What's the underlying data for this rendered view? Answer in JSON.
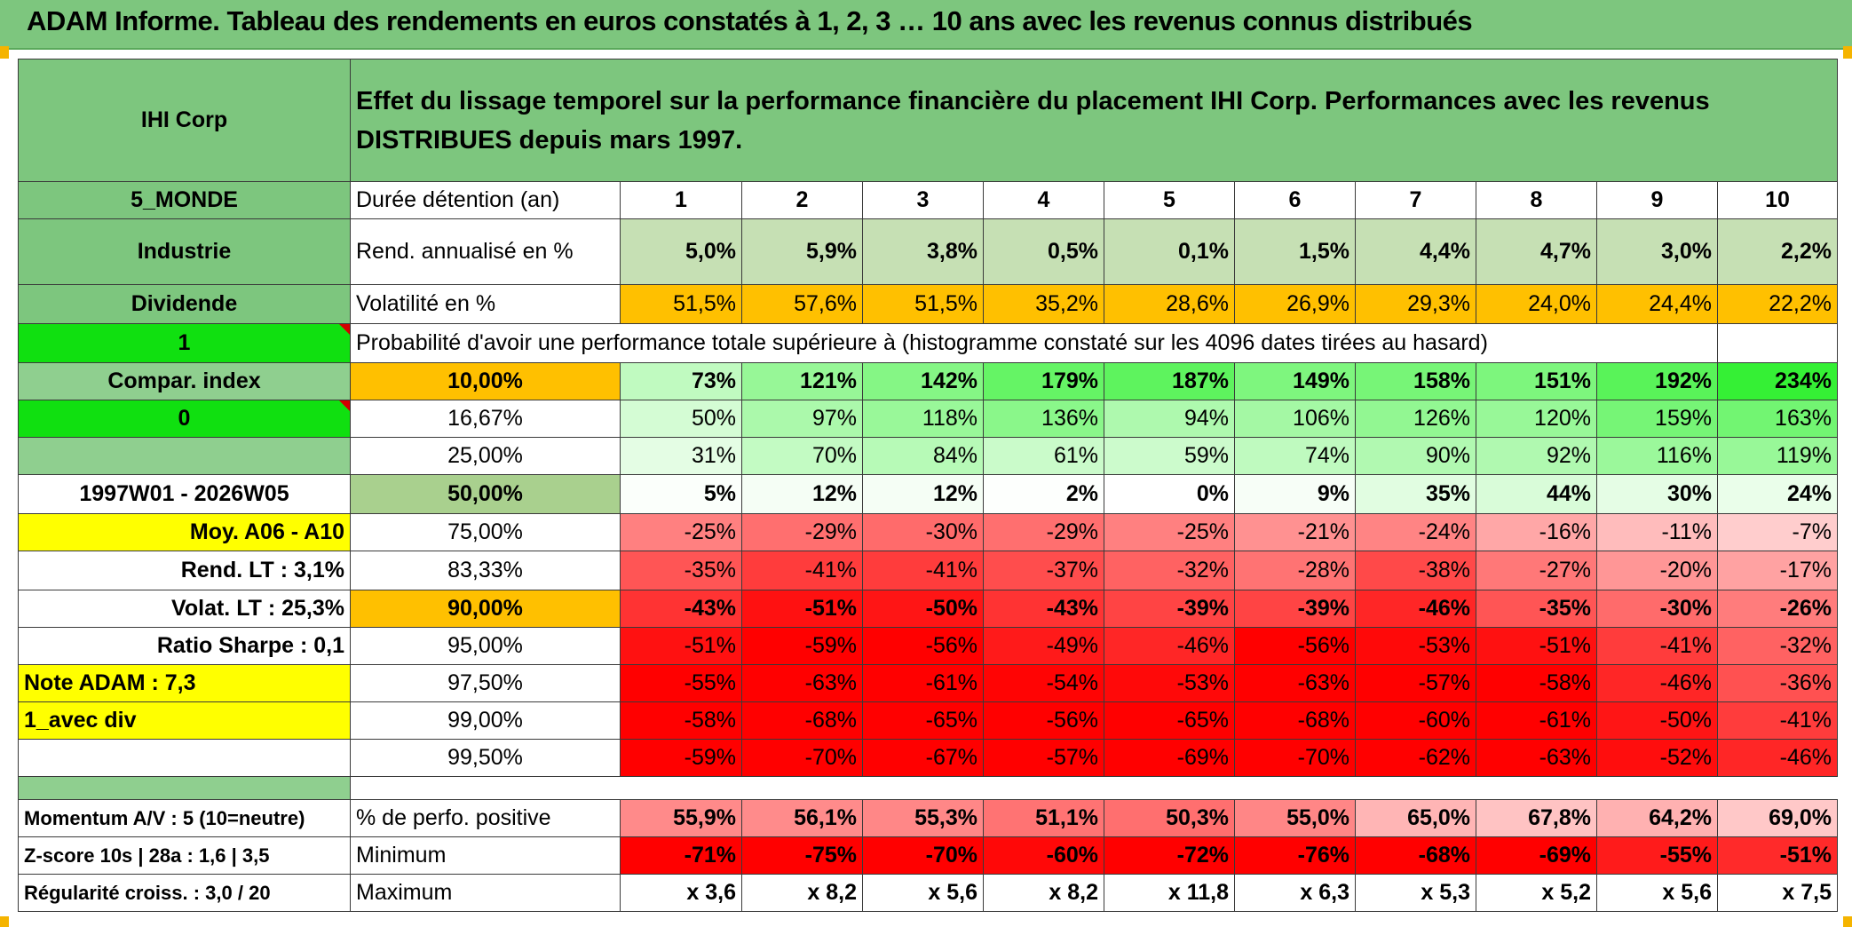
{
  "title": "ADAM Informe. Tableau des rendements en euros constatés à 1, 2, 3 … 10 ans avec les revenus connus distribués",
  "header": {
    "company": "IHI Corp",
    "description": "Effet du lissage temporel sur la performance financière du placement IHI Corp. Performances avec les revenus DISTRIBUES depuis mars 1997."
  },
  "left": {
    "zone": "5_MONDE",
    "sector": "Industrie",
    "dividend": "Dividende",
    "flag1": "1",
    "compar": "Compar. index",
    "flag0": "0",
    "period": "1997W01 - 2026W05",
    "moy": "Moy. A06 - A10",
    "rend_lt": "Rend. LT :   3,1%",
    "volat_lt": "Volat. LT :   25,3%",
    "sharpe": "Ratio Sharpe :    0,1",
    "note": "Note ADAM : 7,3",
    "avec_div": "1_avec div",
    "momentum": "Momentum A/V : 5 (10=neutre)",
    "zscore": "Z-score 10s | 28a : 1,6 | 3,5",
    "regularite": "Régularité croiss. : 3,0 / 20"
  },
  "labels": {
    "duree": "Durée détention (an)",
    "rend": "Rend. annualisé en %",
    "volat": "Volatilité en %",
    "proba": "Probabilité d'avoir une performance totale supérieure à (histogramme constaté sur les 4096 dates tirées au hasard)",
    "perf_pos": "% de perfo. positive",
    "minimum": "Minimum",
    "maximum": "Maximum"
  },
  "years": [
    "1",
    "2",
    "3",
    "4",
    "5",
    "6",
    "7",
    "8",
    "9",
    "10"
  ],
  "rend": [
    "5,0%",
    "5,9%",
    "3,8%",
    "0,5%",
    "0,1%",
    "1,5%",
    "4,4%",
    "4,7%",
    "3,0%",
    "2,2%"
  ],
  "volat": [
    "51,5%",
    "57,6%",
    "51,5%",
    "35,2%",
    "28,6%",
    "26,9%",
    "29,3%",
    "24,0%",
    "24,4%",
    "22,2%"
  ],
  "prob_rows": [
    {
      "pct": "10,00%",
      "vals": [
        "73%",
        "121%",
        "142%",
        "179%",
        "187%",
        "149%",
        "158%",
        "151%",
        "192%",
        "234%"
      ]
    },
    {
      "pct": "16,67%",
      "vals": [
        "50%",
        "97%",
        "118%",
        "136%",
        "94%",
        "106%",
        "126%",
        "120%",
        "159%",
        "163%"
      ]
    },
    {
      "pct": "25,00%",
      "vals": [
        "31%",
        "70%",
        "84%",
        "61%",
        "59%",
        "74%",
        "90%",
        "92%",
        "116%",
        "119%"
      ]
    },
    {
      "pct": "50,00%",
      "vals": [
        "5%",
        "12%",
        "12%",
        "2%",
        "0%",
        "9%",
        "35%",
        "44%",
        "30%",
        "24%"
      ]
    },
    {
      "pct": "75,00%",
      "vals": [
        "-25%",
        "-29%",
        "-30%",
        "-29%",
        "-25%",
        "-21%",
        "-24%",
        "-16%",
        "-11%",
        "-7%"
      ]
    },
    {
      "pct": "83,33%",
      "vals": [
        "-35%",
        "-41%",
        "-41%",
        "-37%",
        "-32%",
        "-28%",
        "-38%",
        "-27%",
        "-20%",
        "-17%"
      ]
    },
    {
      "pct": "90,00%",
      "vals": [
        "-43%",
        "-51%",
        "-50%",
        "-43%",
        "-39%",
        "-39%",
        "-46%",
        "-35%",
        "-30%",
        "-26%"
      ]
    },
    {
      "pct": "95,00%",
      "vals": [
        "-51%",
        "-59%",
        "-56%",
        "-49%",
        "-46%",
        "-56%",
        "-53%",
        "-51%",
        "-41%",
        "-32%"
      ]
    },
    {
      "pct": "97,50%",
      "vals": [
        "-55%",
        "-63%",
        "-61%",
        "-54%",
        "-53%",
        "-63%",
        "-57%",
        "-58%",
        "-46%",
        "-36%"
      ]
    },
    {
      "pct": "99,00%",
      "vals": [
        "-58%",
        "-68%",
        "-65%",
        "-56%",
        "-65%",
        "-68%",
        "-60%",
        "-61%",
        "-50%",
        "-41%"
      ]
    },
    {
      "pct": "99,50%",
      "vals": [
        "-59%",
        "-70%",
        "-67%",
        "-57%",
        "-69%",
        "-70%",
        "-62%",
        "-63%",
        "-52%",
        "-46%"
      ]
    }
  ],
  "perf_pos": [
    "55,9%",
    "56,1%",
    "55,3%",
    "51,1%",
    "50,3%",
    "55,0%",
    "65,0%",
    "67,8%",
    "64,2%",
    "69,0%"
  ],
  "minimum": [
    "-71%",
    "-75%",
    "-70%",
    "-60%",
    "-72%",
    "-76%",
    "-68%",
    "-69%",
    "-55%",
    "-51%"
  ],
  "maximum": [
    "x 3,6",
    "x 8,2",
    "x 5,6",
    "x 8,2",
    "x 11,8",
    "x 6,3",
    "x 5,3",
    "x 5,2",
    "x 5,6",
    "x 7,5"
  ],
  "colors": {
    "title_green": "#7dc67e",
    "bright_green": "#10e010",
    "orange": "#ffc000",
    "yellow": "#ffff00",
    "red_text": "#d40000"
  }
}
